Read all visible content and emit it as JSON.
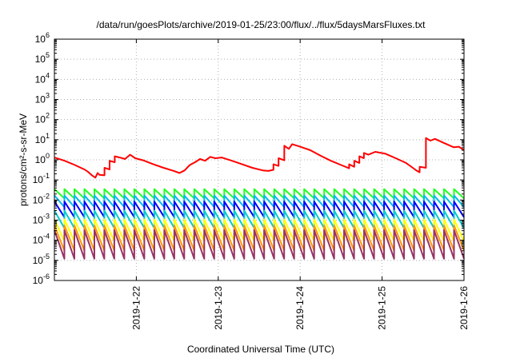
{
  "chart_data": {
    "type": "line",
    "title": "/data/run/goesPlots/archive/2019-01-25/23:00/flux/../flux/5daysMarsFluxes.txt",
    "xlabel": "Coordinated Universal Time (UTC)",
    "ylabel": "protons/cm²-s-sr-MeV",
    "xlim": [
      "2019-01-21 00:00",
      "2019-01-26 00:00"
    ],
    "x_ticks": [
      "2019-1-22",
      "2019-1-23",
      "2019-1-24",
      "2019-1-25",
      "2019-1-26"
    ],
    "y_scale": "log",
    "ylim": [
      1e-06,
      1000000.0
    ],
    "y_tick_exponents": [
      -6,
      -5,
      -4,
      -3,
      -2,
      -1,
      0,
      1,
      2,
      3,
      4,
      5,
      6
    ],
    "grid": true,
    "legend": "none",
    "series": [
      {
        "color": "#ff0000",
        "width": 2,
        "points": [
          [
            "2019-01-21 00:00",
            1.3
          ],
          [
            "2019-01-21 03:00",
            0.9
          ],
          [
            "2019-01-21 06:00",
            0.55
          ],
          [
            "2019-01-21 09:00",
            0.32
          ],
          [
            "2019-01-21 10:00",
            0.24
          ],
          [
            "2019-01-21 11:00",
            0.17
          ],
          [
            "2019-01-21 12:00",
            0.13
          ],
          [
            "2019-01-21 12:40",
            0.22
          ],
          [
            "2019-01-21 13:10",
            0.18
          ],
          [
            "2019-01-21 14:40",
            0.17
          ],
          [
            "2019-01-21 14:41",
            0.4
          ],
          [
            "2019-01-21 16:10",
            0.33
          ],
          [
            "2019-01-21 16:11",
            0.9
          ],
          [
            "2019-01-21 17:40",
            0.75
          ],
          [
            "2019-01-21 17:41",
            1.5
          ],
          [
            "2019-01-21 19:10",
            1.3
          ],
          [
            "2019-01-21 20:40",
            1.1
          ],
          [
            "2019-01-21 22:10",
            1.8
          ],
          [
            "2019-01-21 23:40",
            1.2
          ],
          [
            "2019-01-22 02:00",
            0.95
          ],
          [
            "2019-01-22 05:00",
            0.6
          ],
          [
            "2019-01-22 08:00",
            0.4
          ],
          [
            "2019-01-22 11:00",
            0.28
          ],
          [
            "2019-01-22 12:40",
            0.22
          ],
          [
            "2019-01-22 14:10",
            0.3
          ],
          [
            "2019-01-22 15:40",
            0.55
          ],
          [
            "2019-01-22 17:10",
            0.75
          ],
          [
            "2019-01-22 18:40",
            1.1
          ],
          [
            "2019-01-22 20:10",
            0.9
          ],
          [
            "2019-01-22 21:40",
            1.4
          ],
          [
            "2019-01-22 23:10",
            1.2
          ],
          [
            "2019-01-23 01:00",
            1.3
          ],
          [
            "2019-01-23 04:00",
            0.9
          ],
          [
            "2019-01-23 07:00",
            0.6
          ],
          [
            "2019-01-23 10:00",
            0.4
          ],
          [
            "2019-01-23 13:00",
            0.3
          ],
          [
            "2019-01-23 14:40",
            0.28
          ],
          [
            "2019-01-23 16:10",
            0.32
          ],
          [
            "2019-01-23 16:11",
            0.6
          ],
          [
            "2019-01-23 17:40",
            0.5
          ],
          [
            "2019-01-23 17:41",
            1.2
          ],
          [
            "2019-01-23 19:20",
            0.95
          ],
          [
            "2019-01-23 19:21",
            5.0
          ],
          [
            "2019-01-23 20:40",
            3.5
          ],
          [
            "2019-01-23 21:40",
            6.0
          ],
          [
            "2019-01-24 00:00",
            4.5
          ],
          [
            "2019-01-24 03:00",
            3.0
          ],
          [
            "2019-01-24 06:00",
            1.6
          ],
          [
            "2019-01-24 09:00",
            0.9
          ],
          [
            "2019-01-24 12:00",
            0.55
          ],
          [
            "2019-01-24 14:20",
            0.38
          ],
          [
            "2019-01-24 14:21",
            0.6
          ],
          [
            "2019-01-24 15:50",
            0.45
          ],
          [
            "2019-01-24 15:51",
            0.9
          ],
          [
            "2019-01-24 17:20",
            0.7
          ],
          [
            "2019-01-24 17:21",
            1.5
          ],
          [
            "2019-01-24 18:40",
            1.2
          ],
          [
            "2019-01-24 18:41",
            2.2
          ],
          [
            "2019-01-24 20:00",
            1.8
          ],
          [
            "2019-01-24 22:00",
            2.5
          ],
          [
            "2019-01-25 01:00",
            2.0
          ],
          [
            "2019-01-25 04:00",
            1.2
          ],
          [
            "2019-01-25 07:00",
            0.7
          ],
          [
            "2019-01-25 09:00",
            0.4
          ],
          [
            "2019-01-25 10:00",
            0.3
          ],
          [
            "2019-01-25 11:00",
            0.24
          ],
          [
            "2019-01-25 11:01",
            0.45
          ],
          [
            "2019-01-25 12:50",
            0.4
          ],
          [
            "2019-01-25 12:51",
            12
          ],
          [
            "2019-01-25 14:10",
            9
          ],
          [
            "2019-01-25 15:30",
            11
          ],
          [
            "2019-01-25 18:00",
            7
          ],
          [
            "2019-01-25 21:00",
            4.2
          ],
          [
            "2019-01-25 22:30",
            4.5
          ],
          [
            "2019-01-26 00:00",
            3.0
          ]
        ]
      },
      {
        "color": "#22ff22",
        "width": 2,
        "min": 0.012,
        "max": 0.035
      },
      {
        "color": "#00bbee",
        "width": 2,
        "min": 0.0045,
        "max": 0.017
      },
      {
        "color": "#0000ff",
        "width": 2,
        "min": 0.0014,
        "max": 0.0085
      },
      {
        "color": "#00cccc",
        "width": 2,
        "min": 0.0004,
        "max": 0.003
      },
      {
        "color": "#ffff00",
        "width": 2,
        "min": 9e-05,
        "max": 0.0011
      },
      {
        "color": "#ff9900",
        "width": 2,
        "min": 3e-05,
        "max": 0.00055
      },
      {
        "color": "#993366",
        "width": 2,
        "min": 1.2e-05,
        "max": 0.00032
      }
    ]
  }
}
